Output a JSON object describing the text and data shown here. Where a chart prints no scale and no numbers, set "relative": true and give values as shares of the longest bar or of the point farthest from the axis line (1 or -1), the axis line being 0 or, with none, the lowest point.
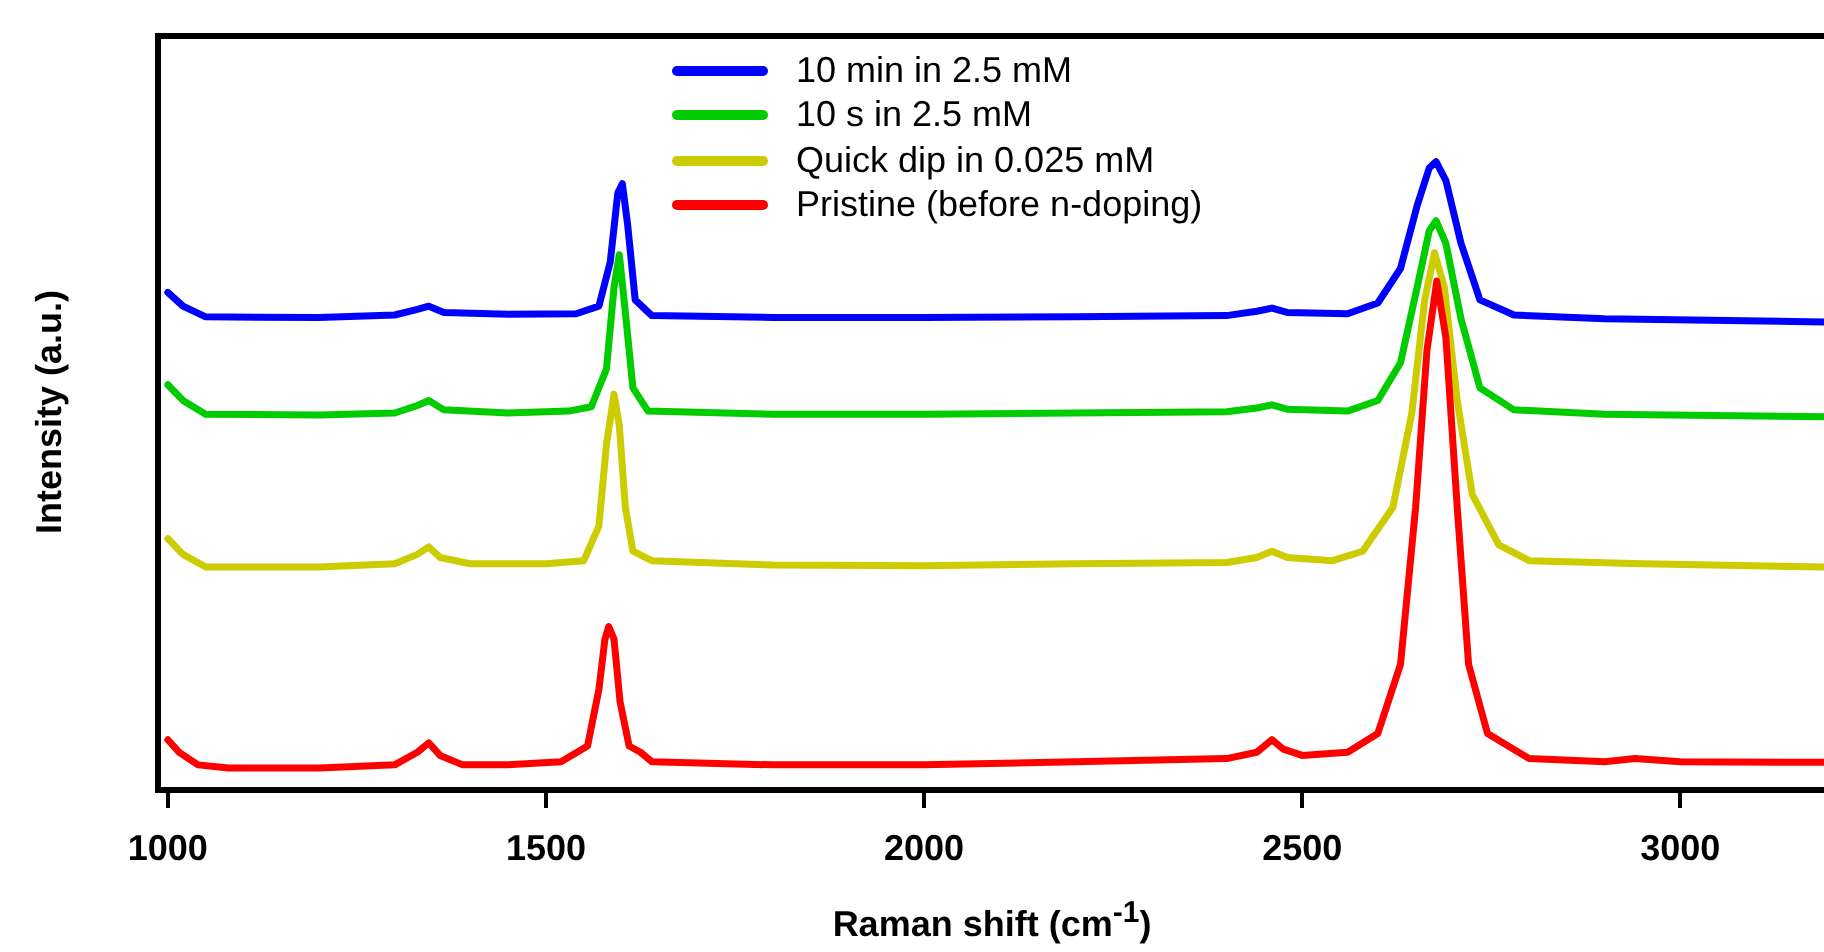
{
  "chart_data": {
    "type": "line",
    "relative": true,
    "xlabel": "Raman shift (cm$^{-1}$)",
    "ylabel": "Intensity (a.u.)",
    "xlim": [
      987,
      3190
    ],
    "xticks": [
      1000,
      1500,
      2000,
      2500,
      3000
    ],
    "grid": false,
    "legend": "top",
    "marker": "none",
    "line_style": "solid",
    "series": [
      {
        "name": "10 min in 2.5 mM",
        "color": "#0000ff",
        "x": [
          1000,
          1020,
          1050,
          1200,
          1300,
          1330,
          1345,
          1365,
          1450,
          1540,
          1570,
          1585,
          1595,
          1601,
          1608,
          1618,
          1640,
          1800,
          2000,
          2200,
          2400,
          2440,
          2460,
          2480,
          2560,
          2600,
          2630,
          2652,
          2668,
          2677,
          2690,
          2710,
          2735,
          2780,
          2900,
          3190
        ],
        "values": [
          0.792,
          0.77,
          0.753,
          0.752,
          0.756,
          0.765,
          0.77,
          0.76,
          0.757,
          0.758,
          0.77,
          0.84,
          0.95,
          0.965,
          0.9,
          0.78,
          0.755,
          0.752,
          0.752,
          0.753,
          0.755,
          0.762,
          0.767,
          0.76,
          0.758,
          0.775,
          0.83,
          0.93,
          0.99,
          1.0,
          0.97,
          0.87,
          0.78,
          0.756,
          0.75,
          0.745
        ]
      },
      {
        "name": "10 s in 2.5 mM",
        "color": "#00cc00",
        "x": [
          1000,
          1020,
          1050,
          1200,
          1300,
          1330,
          1345,
          1365,
          1450,
          1530,
          1560,
          1580,
          1590,
          1597,
          1605,
          1615,
          1635,
          1800,
          2000,
          2200,
          2400,
          2440,
          2460,
          2480,
          2560,
          2600,
          2630,
          2652,
          2668,
          2677,
          2690,
          2710,
          2735,
          2780,
          2900,
          3190
        ],
        "values": [
          0.645,
          0.62,
          0.598,
          0.597,
          0.6,
          0.612,
          0.62,
          0.605,
          0.6,
          0.603,
          0.61,
          0.67,
          0.8,
          0.852,
          0.76,
          0.64,
          0.603,
          0.598,
          0.598,
          0.6,
          0.602,
          0.608,
          0.613,
          0.606,
          0.603,
          0.62,
          0.68,
          0.8,
          0.89,
          0.906,
          0.87,
          0.75,
          0.64,
          0.605,
          0.598,
          0.594
        ]
      },
      {
        "name": "Quick dip in 0.025 mM",
        "color": "#cccc00",
        "x": [
          1000,
          1020,
          1050,
          1200,
          1300,
          1330,
          1345,
          1360,
          1400,
          1500,
          1550,
          1570,
          1580,
          1590,
          1597,
          1605,
          1615,
          1640,
          1800,
          2000,
          2200,
          2400,
          2440,
          2460,
          2480,
          2540,
          2580,
          2620,
          2645,
          2662,
          2675,
          2688,
          2705,
          2725,
          2760,
          2800,
          2950,
          3190
        ],
        "values": [
          0.4,
          0.375,
          0.355,
          0.355,
          0.36,
          0.375,
          0.387,
          0.37,
          0.36,
          0.36,
          0.365,
          0.42,
          0.55,
          0.63,
          0.58,
          0.45,
          0.38,
          0.365,
          0.358,
          0.357,
          0.36,
          0.362,
          0.37,
          0.38,
          0.37,
          0.365,
          0.38,
          0.45,
          0.6,
          0.78,
          0.855,
          0.8,
          0.62,
          0.47,
          0.39,
          0.365,
          0.36,
          0.355
        ]
      },
      {
        "name": "Pristine (before n-doping)",
        "color": "#ff0000",
        "x": [
          1000,
          1015,
          1040,
          1080,
          1200,
          1300,
          1330,
          1345,
          1360,
          1390,
          1450,
          1520,
          1555,
          1570,
          1578,
          1583,
          1590,
          1598,
          1610,
          1625,
          1640,
          1800,
          2000,
          2200,
          2400,
          2440,
          2460,
          2475,
          2500,
          2560,
          2600,
          2630,
          2650,
          2665,
          2678,
          2690,
          2705,
          2720,
          2745,
          2800,
          2900,
          2940,
          3000,
          3190
        ],
        "values": [
          0.08,
          0.06,
          0.04,
          0.035,
          0.035,
          0.04,
          0.06,
          0.075,
          0.055,
          0.04,
          0.04,
          0.045,
          0.07,
          0.16,
          0.24,
          0.26,
          0.24,
          0.14,
          0.07,
          0.06,
          0.045,
          0.04,
          0.04,
          0.045,
          0.05,
          0.06,
          0.08,
          0.065,
          0.055,
          0.06,
          0.09,
          0.2,
          0.45,
          0.7,
          0.81,
          0.72,
          0.45,
          0.2,
          0.09,
          0.05,
          0.045,
          0.05,
          0.045,
          0.044
        ]
      }
    ]
  }
}
